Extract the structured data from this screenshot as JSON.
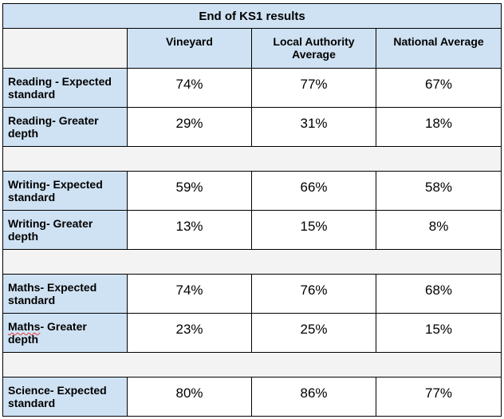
{
  "table": {
    "title": "End of KS1 results",
    "columns": [
      "",
      "Vineyard",
      "Local Authority Average",
      "National Average"
    ],
    "columns_lines": [
      [
        "Vineyard"
      ],
      [
        "Local Authority",
        "Average"
      ],
      [
        "National Average"
      ]
    ],
    "groups": [
      {
        "rows": [
          {
            "label_lines": [
              "Reading - Expected",
              "standard"
            ],
            "values": [
              "74%",
              "77%",
              "67%"
            ]
          },
          {
            "label_lines": [
              "Reading- Greater",
              "depth"
            ],
            "values": [
              "29%",
              "31%",
              "18%"
            ]
          }
        ]
      },
      {
        "rows": [
          {
            "label_lines": [
              "Writing- Expected",
              "standard"
            ],
            "values": [
              "59%",
              "66%",
              "58%"
            ]
          },
          {
            "label_lines": [
              "Writing- Greater",
              "depth"
            ],
            "values": [
              "13%",
              "15%",
              "8%"
            ]
          }
        ]
      },
      {
        "rows": [
          {
            "label_lines": [
              "Maths- Expected",
              "standard"
            ],
            "values": [
              "74%",
              "76%",
              "68%"
            ]
          },
          {
            "label_lines": [
              "Maths- Greater",
              "depth"
            ],
            "values": [
              "23%",
              "25%",
              "15%"
            ]
          }
        ]
      },
      {
        "rows": [
          {
            "label_lines": [
              "Science- Expected",
              "standard"
            ],
            "values": [
              "80%",
              "86%",
              "77%"
            ]
          }
        ]
      }
    ]
  }
}
